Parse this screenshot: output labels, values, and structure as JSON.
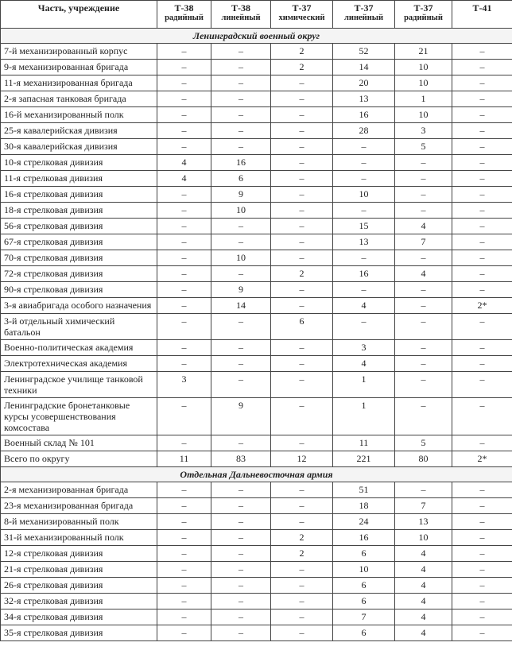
{
  "table": {
    "header": [
      {
        "model": "Часть, учреждение"
      },
      {
        "model": "Т-38",
        "kind": "радийный"
      },
      {
        "model": "Т-38",
        "kind": "линейный"
      },
      {
        "model": "Т-37",
        "kind": "химический"
      },
      {
        "model": "Т-37",
        "kind": "линейный"
      },
      {
        "model": "Т-37",
        "kind": "радийный"
      },
      {
        "model": "Т-41"
      }
    ],
    "sections": [
      {
        "title": "Ленинградский военный округ",
        "rows": [
          [
            "7-й механизированный корпус",
            "–",
            "–",
            "2",
            "52",
            "21",
            "–"
          ],
          [
            "9-я механизированная бригада",
            "–",
            "–",
            "2",
            "14",
            "10",
            "–"
          ],
          [
            "11-я механизированная бригада",
            "–",
            "–",
            "–",
            "20",
            "10",
            "–"
          ],
          [
            "2-я запасная танковая бригада",
            "–",
            "–",
            "–",
            "13",
            "1",
            "–"
          ],
          [
            "16-й механизированный полк",
            "–",
            "–",
            "–",
            "16",
            "10",
            "–"
          ],
          [
            "25-я кавалерийская дивизия",
            "–",
            "–",
            "–",
            "28",
            "3",
            "–"
          ],
          [
            "30-я кавалерийская дивизия",
            "–",
            "–",
            "–",
            "–",
            "5",
            "–"
          ],
          [
            "10-я стрелковая дивизия",
            "4",
            "16",
            "–",
            "–",
            "–",
            "–"
          ],
          [
            "11-я стрелковая дивизия",
            "4",
            "6",
            "–",
            "–",
            "–",
            "–"
          ],
          [
            "16-я стрелковая дивизия",
            "–",
            "9",
            "–",
            "10",
            "–",
            "–"
          ],
          [
            "18-я стрелковая дивизия",
            "–",
            "10",
            "–",
            "–",
            "–",
            "–"
          ],
          [
            "56-я стрелковая дивизия",
            "–",
            "–",
            "–",
            "15",
            "4",
            "–"
          ],
          [
            "67-я стрелковая дивизия",
            "–",
            "–",
            "–",
            "13",
            "7",
            "–"
          ],
          [
            "70-я стрелковая дивизия",
            "–",
            "10",
            "–",
            "–",
            "–",
            "–"
          ],
          [
            "72-я стрелковая дивизия",
            "–",
            "–",
            "2",
            "16",
            "4",
            "–"
          ],
          [
            "90-я стрелковая дивизия",
            "–",
            "9",
            "–",
            "–",
            "–",
            "–"
          ],
          [
            "3-я авиабригада особого назначения",
            "–",
            "14",
            "–",
            "4",
            "–",
            "2*"
          ],
          [
            "3-й отдельный химический батальон",
            "–",
            "–",
            "6",
            "–",
            "–",
            "–"
          ],
          [
            "Военно-политическая академия",
            "–",
            "–",
            "–",
            "3",
            "–",
            "–"
          ],
          [
            "Электротехническая академия",
            "–",
            "–",
            "–",
            "4",
            "–",
            "–"
          ],
          [
            "Ленинградское училище танковой техники",
            "3",
            "–",
            "–",
            "1",
            "–",
            "–"
          ],
          [
            "Ленинградские бронетанковые курсы усовершенствования комсостава",
            "–",
            "9",
            "–",
            "1",
            "–",
            "–"
          ],
          [
            "Военный склад № 101",
            "–",
            "–",
            "–",
            "11",
            "5",
            "–"
          ],
          [
            "Всего по округу",
            "11",
            "83",
            "12",
            "221",
            "80",
            "2*"
          ]
        ]
      },
      {
        "title": "Отдельная Дальневосточная армия",
        "rows": [
          [
            "2-я механизированная бригада",
            "–",
            "–",
            "–",
            "51",
            "–",
            "–"
          ],
          [
            "23-я механизированная бригада",
            "–",
            "–",
            "–",
            "18",
            "7",
            "–"
          ],
          [
            "8-й механизированный полк",
            "–",
            "–",
            "–",
            "24",
            "13",
            "–"
          ],
          [
            "31-й механизированный полк",
            "–",
            "–",
            "2",
            "16",
            "10",
            "–"
          ],
          [
            "12-я стрелковая дивизия",
            "–",
            "–",
            "2",
            "6",
            "4",
            "–"
          ],
          [
            "21-я стрелковая дивизия",
            "–",
            "–",
            "–",
            "10",
            "4",
            "–"
          ],
          [
            "26-я стрелковая дивизия",
            "–",
            "–",
            "–",
            "6",
            "4",
            "–"
          ],
          [
            "32-я стрелковая дивизия",
            "–",
            "–",
            "–",
            "6",
            "4",
            "–"
          ],
          [
            "34-я стрелковая дивизия",
            "–",
            "–",
            "–",
            "7",
            "4",
            "–"
          ],
          [
            "35-я стрелковая дивизия",
            "–",
            "–",
            "–",
            "6",
            "4",
            "–"
          ]
        ]
      }
    ]
  }
}
